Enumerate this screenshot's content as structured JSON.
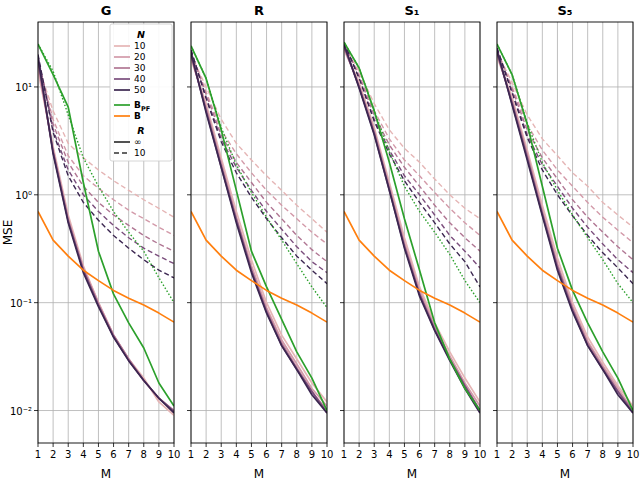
{
  "chart_data": [
    {
      "type": "line",
      "title": "G",
      "xlabel": "M",
      "ylabel": "MSE",
      "log": "y",
      "grid": true,
      "legend": "upper right",
      "legend_title": "N",
      "legend_R": {
        "title": "R",
        "entries": [
          {
            "name": "∞",
            "line_style": "solid",
            "color": "#333333"
          },
          {
            "name": "10",
            "line_style": "dashed",
            "color": "#333333"
          }
        ]
      },
      "x": [
        1,
        2,
        3,
        4,
        5,
        6,
        7,
        8,
        9,
        10
      ],
      "xlim": [
        1,
        10
      ],
      "xticks": [
        1,
        2,
        3,
        4,
        5,
        6,
        7,
        8,
        9,
        10
      ],
      "ylim": [
        0.005,
        40
      ],
      "yticks": [
        {
          "value": 0.01,
          "label": "10⁻²"
        },
        {
          "value": 0.1,
          "label": "10⁻¹"
        },
        {
          "value": 1,
          "label": "10⁰"
        },
        {
          "value": 10,
          "label": "10¹"
        }
      ],
      "series": [
        {
          "name": "10",
          "color": "#e5b5b5",
          "line_style": "dashed",
          "values": [
            16,
            6,
            3,
            2.2,
            1.7,
            1.35,
            1.1,
            0.9,
            0.75,
            0.62
          ]
        },
        {
          "name": "20",
          "color": "#d39aa9",
          "line_style": "dashed",
          "values": [
            17,
            5,
            2.3,
            1.5,
            1.15,
            0.9,
            0.72,
            0.6,
            0.5,
            0.42
          ]
        },
        {
          "name": "30",
          "color": "#b07693",
          "line_style": "dashed",
          "values": [
            18,
            4.5,
            2,
            1.2,
            0.85,
            0.65,
            0.52,
            0.42,
            0.35,
            0.3
          ]
        },
        {
          "name": "40",
          "color": "#7a4d7c",
          "line_style": "dashed",
          "values": [
            19,
            4,
            1.7,
            1,
            0.7,
            0.52,
            0.4,
            0.32,
            0.27,
            0.23
          ]
        },
        {
          "name": "50",
          "color": "#3b2650",
          "line_style": "dashed",
          "values": [
            20,
            3.8,
            1.5,
            0.85,
            0.58,
            0.42,
            0.32,
            0.25,
            0.2,
            0.17
          ]
        },
        {
          "name": "B",
          "name_sub": "PF",
          "color": "#2ca02c",
          "line_style": "dotted",
          "values": [
            25,
            14,
            5.5,
            2.2,
            1.2,
            0.7,
            0.45,
            0.3,
            0.17,
            0.1
          ]
        },
        {
          "name": "10",
          "color": "#e5b5b5",
          "line_style": "solid",
          "values": [
            14,
            2.8,
            0.65,
            0.22,
            0.1,
            0.05,
            0.03,
            0.02,
            0.012,
            0.009
          ]
        },
        {
          "name": "20",
          "color": "#d39aa9",
          "line_style": "solid",
          "values": [
            16,
            2.6,
            0.6,
            0.21,
            0.1,
            0.05,
            0.03,
            0.019,
            0.013,
            0.0095
          ]
        },
        {
          "name": "30",
          "color": "#b07693",
          "line_style": "solid",
          "values": [
            17,
            2.5,
            0.58,
            0.2,
            0.095,
            0.05,
            0.03,
            0.019,
            0.013,
            0.01
          ]
        },
        {
          "name": "40",
          "color": "#7a4d7c",
          "line_style": "solid",
          "values": [
            18,
            2.5,
            0.57,
            0.2,
            0.095,
            0.048,
            0.029,
            0.019,
            0.013,
            0.0098
          ]
        },
        {
          "name": "50",
          "color": "#3b2650",
          "line_style": "solid",
          "values": [
            19,
            2.4,
            0.55,
            0.19,
            0.092,
            0.048,
            0.029,
            0.019,
            0.013,
            0.0095
          ]
        },
        {
          "name": "B",
          "name_sub": "PF",
          "color": "#2ca02c",
          "line_style": "solid",
          "values": [
            25,
            13,
            6.5,
            1.3,
            0.3,
            0.12,
            0.065,
            0.038,
            0.018,
            0.011
          ]
        },
        {
          "name": "B",
          "color": "#ff7f0e",
          "line_style": "solid",
          "values": [
            0.7,
            0.38,
            0.27,
            0.2,
            0.16,
            0.13,
            0.11,
            0.095,
            0.08,
            0.066
          ]
        }
      ]
    },
    {
      "type": "line",
      "title": "R",
      "xlabel": "M",
      "log": "y",
      "grid": true,
      "tick_labels": "x",
      "x": [
        1,
        2,
        3,
        4,
        5,
        6,
        7,
        8,
        9,
        10
      ],
      "xlim": [
        1,
        10
      ],
      "xticks": [
        1,
        2,
        3,
        4,
        5,
        6,
        7,
        8,
        9,
        10
      ],
      "ylim": [
        0.005,
        40
      ],
      "yticks": [
        0.01,
        0.1,
        1,
        10
      ],
      "series": [
        {
          "name": "10",
          "color": "#e5b5b5",
          "line_style": "dashed",
          "values": [
            20,
            10,
            5,
            3,
            2.1,
            1.5,
            1.1,
            0.8,
            0.6,
            0.45
          ]
        },
        {
          "name": "20",
          "color": "#d39aa9",
          "line_style": "dashed",
          "values": [
            21,
            9,
            4,
            2.4,
            1.6,
            1.1,
            0.8,
            0.6,
            0.45,
            0.35
          ]
        },
        {
          "name": "30",
          "color": "#b07693",
          "line_style": "dashed",
          "values": [
            21,
            8.5,
            3.6,
            2,
            1.3,
            0.85,
            0.6,
            0.42,
            0.31,
            0.24
          ]
        },
        {
          "name": "40",
          "color": "#7a4d7c",
          "line_style": "dashed",
          "values": [
            22,
            8,
            3.3,
            1.8,
            1.1,
            0.7,
            0.48,
            0.33,
            0.24,
            0.19
          ]
        },
        {
          "name": "50",
          "color": "#3b2650",
          "line_style": "dashed",
          "values": [
            22,
            7.8,
            3.1,
            1.6,
            0.95,
            0.6,
            0.4,
            0.27,
            0.2,
            0.15
          ]
        },
        {
          "name": "B",
          "name_sub": "PF",
          "color": "#2ca02c",
          "line_style": "dotted",
          "values": [
            24,
            12,
            4.2,
            1.9,
            1.05,
            0.62,
            0.38,
            0.23,
            0.14,
            0.09
          ]
        },
        {
          "name": "10",
          "color": "#e5b5b5",
          "line_style": "solid",
          "values": [
            18,
            7,
            2.2,
            0.7,
            0.25,
            0.1,
            0.05,
            0.03,
            0.018,
            0.012
          ]
        },
        {
          "name": "20",
          "color": "#d39aa9",
          "line_style": "solid",
          "values": [
            19,
            6.5,
            2,
            0.62,
            0.22,
            0.09,
            0.045,
            0.027,
            0.016,
            0.011
          ]
        },
        {
          "name": "30",
          "color": "#b07693",
          "line_style": "solid",
          "values": [
            20,
            6.2,
            1.9,
            0.6,
            0.2,
            0.085,
            0.042,
            0.025,
            0.015,
            0.01
          ]
        },
        {
          "name": "40",
          "color": "#7a4d7c",
          "line_style": "solid",
          "values": [
            20,
            6,
            1.8,
            0.58,
            0.2,
            0.082,
            0.04,
            0.024,
            0.015,
            0.0095
          ]
        },
        {
          "name": "50",
          "color": "#3b2650",
          "line_style": "solid",
          "values": [
            21,
            5.8,
            1.8,
            0.55,
            0.19,
            0.08,
            0.04,
            0.024,
            0.014,
            0.0095
          ]
        },
        {
          "name": "B",
          "name_sub": "PF",
          "color": "#2ca02c",
          "line_style": "solid",
          "values": [
            24,
            12,
            4,
            1.1,
            0.3,
            0.14,
            0.07,
            0.035,
            0.02,
            0.01
          ]
        },
        {
          "name": "B",
          "color": "#ff7f0e",
          "line_style": "solid",
          "values": [
            0.7,
            0.38,
            0.27,
            0.2,
            0.16,
            0.13,
            0.11,
            0.095,
            0.08,
            0.066
          ]
        }
      ]
    },
    {
      "type": "line",
      "title": "S₁",
      "xlabel": "M",
      "log": "y",
      "grid": true,
      "tick_labels": "x",
      "x": [
        1,
        2,
        3,
        4,
        5,
        6,
        7,
        8,
        9,
        10
      ],
      "xlim": [
        1,
        10
      ],
      "xticks": [
        1,
        2,
        3,
        4,
        5,
        6,
        7,
        8,
        9,
        10
      ],
      "ylim": [
        0.005,
        40
      ],
      "yticks": [
        0.01,
        0.1,
        1,
        10
      ],
      "series": [
        {
          "name": "10",
          "color": "#e5b5b5",
          "line_style": "dashed",
          "values": [
            24,
            14,
            7,
            4,
            2.7,
            2,
            1.4,
            1,
            0.75,
            0.6
          ]
        },
        {
          "name": "20",
          "color": "#d39aa9",
          "line_style": "dashed",
          "values": [
            25,
            13,
            6,
            3.3,
            2.1,
            1.5,
            1.05,
            0.75,
            0.55,
            0.42
          ]
        },
        {
          "name": "30",
          "color": "#b07693",
          "line_style": "dashed",
          "values": [
            25,
            12.5,
            5.5,
            2.9,
            1.8,
            1.2,
            0.8,
            0.55,
            0.4,
            0.3
          ]
        },
        {
          "name": "40",
          "color": "#7a4d7c",
          "line_style": "dashed",
          "values": [
            26,
            12,
            5,
            2.6,
            1.5,
            1,
            0.65,
            0.42,
            0.3,
            0.21
          ]
        },
        {
          "name": "50",
          "color": "#3b2650",
          "line_style": "dashed",
          "values": [
            26,
            12,
            4.8,
            2.4,
            1.35,
            0.85,
            0.55,
            0.35,
            0.24,
            0.14
          ]
        },
        {
          "name": "B",
          "name_sub": "PF",
          "color": "#2ca02c",
          "line_style": "dotted",
          "values": [
            26,
            15,
            6,
            2.5,
            1.2,
            0.7,
            0.45,
            0.28,
            0.16,
            0.1
          ]
        },
        {
          "name": "10",
          "color": "#e5b5b5",
          "line_style": "solid",
          "values": [
            22,
            11,
            4.2,
            1.3,
            0.4,
            0.14,
            0.065,
            0.035,
            0.02,
            0.012
          ]
        },
        {
          "name": "20",
          "color": "#d39aa9",
          "line_style": "solid",
          "values": [
            23,
            10.5,
            4,
            1.2,
            0.36,
            0.13,
            0.06,
            0.032,
            0.018,
            0.011
          ]
        },
        {
          "name": "30",
          "color": "#b07693",
          "line_style": "solid",
          "values": [
            24,
            10,
            3.8,
            1.15,
            0.34,
            0.12,
            0.058,
            0.03,
            0.017,
            0.01
          ]
        },
        {
          "name": "40",
          "color": "#7a4d7c",
          "line_style": "solid",
          "values": [
            24,
            10,
            3.7,
            1.1,
            0.33,
            0.12,
            0.056,
            0.03,
            0.017,
            0.01
          ]
        },
        {
          "name": "50",
          "color": "#3b2650",
          "line_style": "solid",
          "values": [
            25,
            9.8,
            3.6,
            1.1,
            0.32,
            0.115,
            0.055,
            0.029,
            0.016,
            0.0095
          ]
        },
        {
          "name": "B",
          "name_sub": "PF",
          "color": "#2ca02c",
          "line_style": "solid",
          "values": [
            26,
            15,
            6,
            2,
            0.6,
            0.2,
            0.065,
            0.03,
            0.016,
            0.01
          ]
        },
        {
          "name": "B",
          "color": "#ff7f0e",
          "line_style": "solid",
          "values": [
            0.7,
            0.38,
            0.27,
            0.2,
            0.16,
            0.13,
            0.11,
            0.095,
            0.08,
            0.066
          ]
        }
      ]
    },
    {
      "type": "line",
      "title": "S₅",
      "xlabel": "M",
      "log": "y",
      "grid": true,
      "tick_labels": "x",
      "x": [
        1,
        2,
        3,
        4,
        5,
        6,
        7,
        8,
        9,
        10
      ],
      "xlim": [
        1,
        10
      ],
      "xticks": [
        1,
        2,
        3,
        4,
        5,
        6,
        7,
        8,
        9,
        10
      ],
      "ylim": [
        0.005,
        40
      ],
      "yticks": [
        0.01,
        0.1,
        1,
        10
      ],
      "series": [
        {
          "name": "10",
          "color": "#e5b5b5",
          "line_style": "dashed",
          "values": [
            21,
            11,
            5.5,
            3.3,
            2.3,
            1.6,
            1.2,
            0.85,
            0.65,
            0.5
          ]
        },
        {
          "name": "20",
          "color": "#d39aa9",
          "line_style": "dashed",
          "values": [
            22,
            10,
            4.5,
            2.6,
            1.7,
            1.2,
            0.85,
            0.62,
            0.47,
            0.36
          ]
        },
        {
          "name": "30",
          "color": "#b07693",
          "line_style": "dashed",
          "values": [
            22,
            9.5,
            4,
            2.2,
            1.4,
            0.9,
            0.62,
            0.45,
            0.33,
            0.25
          ]
        },
        {
          "name": "40",
          "color": "#7a4d7c",
          "line_style": "dashed",
          "values": [
            23,
            9,
            3.6,
            1.9,
            1.2,
            0.75,
            0.5,
            0.35,
            0.25,
            0.19
          ]
        },
        {
          "name": "50",
          "color": "#3b2650",
          "line_style": "dashed",
          "values": [
            23,
            8.7,
            3.4,
            1.7,
            1,
            0.64,
            0.42,
            0.29,
            0.21,
            0.15
          ]
        },
        {
          "name": "B",
          "name_sub": "PF",
          "color": "#2ca02c",
          "line_style": "dotted",
          "values": [
            25,
            13,
            4.6,
            2,
            1.1,
            0.65,
            0.4,
            0.25,
            0.15,
            0.1
          ]
        },
        {
          "name": "10",
          "color": "#e5b5b5",
          "line_style": "solid",
          "values": [
            19,
            8,
            2.6,
            0.8,
            0.26,
            0.1,
            0.048,
            0.028,
            0.017,
            0.011
          ]
        },
        {
          "name": "20",
          "color": "#d39aa9",
          "line_style": "solid",
          "values": [
            20,
            7.5,
            2.4,
            0.72,
            0.23,
            0.092,
            0.044,
            0.026,
            0.016,
            0.01
          ]
        },
        {
          "name": "30",
          "color": "#b07693",
          "line_style": "solid",
          "values": [
            21,
            7.2,
            2.3,
            0.68,
            0.22,
            0.088,
            0.042,
            0.025,
            0.015,
            0.01
          ]
        },
        {
          "name": "40",
          "color": "#7a4d7c",
          "line_style": "solid",
          "values": [
            21,
            7,
            2.2,
            0.66,
            0.21,
            0.085,
            0.04,
            0.024,
            0.015,
            0.0095
          ]
        },
        {
          "name": "50",
          "color": "#3b2650",
          "line_style": "solid",
          "values": [
            22,
            6.8,
            2.1,
            0.64,
            0.2,
            0.082,
            0.04,
            0.024,
            0.014,
            0.0095
          ]
        },
        {
          "name": "B",
          "name_sub": "PF",
          "color": "#2ca02c",
          "line_style": "solid",
          "values": [
            25,
            13,
            4.5,
            1.2,
            0.32,
            0.13,
            0.065,
            0.035,
            0.02,
            0.01
          ]
        },
        {
          "name": "B",
          "color": "#ff7f0e",
          "line_style": "solid",
          "values": [
            0.7,
            0.38,
            0.27,
            0.2,
            0.16,
            0.13,
            0.11,
            0.095,
            0.08,
            0.066
          ]
        }
      ]
    }
  ]
}
